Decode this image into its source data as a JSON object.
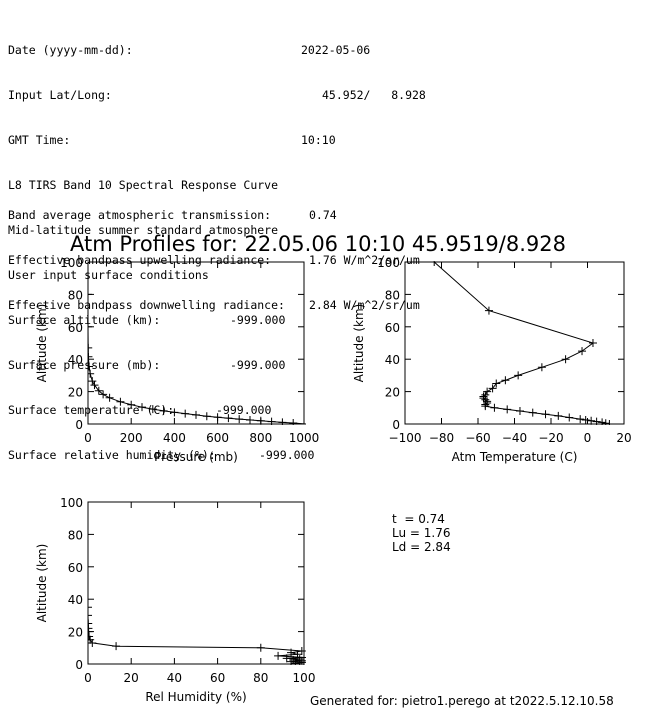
{
  "header": {
    "date_label": "Date (yyyy-mm-dd):",
    "date_value": "2022-05-06",
    "latlong_label": "Input Lat/Long:",
    "latlong_value": "45.952/   8.928",
    "gmt_label": "GMT Time:",
    "gmt_value": "10:10",
    "line_curve": "L8 TIRS Band 10 Spectral Response Curve",
    "line_atmos": "Mid-latitude summer standard atmosphere",
    "line_user": "User input surface conditions",
    "alt_label": "Surface altitude (km):",
    "alt_value": "-999.000",
    "pres_label": "Surface pressure (mb):",
    "pres_value": "-999.000",
    "temp_label": "Surface temperature (C):",
    "temp_value": "-999.000",
    "hum_label": "Surface relative humidity (%):",
    "hum_value": "-999.000"
  },
  "results": {
    "trans_label": "Band average atmospheric transmission:",
    "trans_value": "0.74",
    "up_label": "Effective bandpass upwelling radiance:",
    "up_value": "1.76 W/m^2/sr/um",
    "down_label": "Effective bandpass downwelling radiance:",
    "down_value": "2.84 W/m^2/sr/um"
  },
  "title": "Atm Profiles for: 22.05.06 10:10 45.9519/8.928",
  "summary": {
    "t": "t  = 0.74",
    "lu": "Lu = 1.76",
    "ld": "Ld = 2.84"
  },
  "footer": "Generated for: pietro1.perego at t2022.5.12.10.58",
  "chart_data": [
    {
      "type": "line",
      "name": "pressure-profile",
      "xlabel": "Pressure (mb)",
      "ylabel": "Altitude (km)",
      "xlim": [
        0,
        1000
      ],
      "ylim": [
        0,
        100
      ],
      "xticks": [
        0,
        200,
        400,
        600,
        800,
        1000
      ],
      "yticks": [
        0,
        20,
        40,
        60,
        80,
        100
      ],
      "marker": "plus",
      "points": [
        [
          1013,
          0
        ],
        [
          950,
          0.6
        ],
        [
          900,
          1
        ],
        [
          850,
          1.5
        ],
        [
          800,
          2
        ],
        [
          750,
          2.5
        ],
        [
          700,
          3
        ],
        [
          650,
          3.6
        ],
        [
          600,
          4.2
        ],
        [
          550,
          4.8
        ],
        [
          500,
          5.6
        ],
        [
          450,
          6.4
        ],
        [
          400,
          7.2
        ],
        [
          350,
          8.1
        ],
        [
          300,
          9.2
        ],
        [
          250,
          10.4
        ],
        [
          200,
          11.9
        ],
        [
          150,
          13.7
        ],
        [
          100,
          16.2
        ],
        [
          70,
          18.3
        ],
        [
          50,
          20.5
        ],
        [
          30,
          24
        ],
        [
          20,
          26.5
        ],
        [
          10,
          31
        ],
        [
          5,
          35.5
        ],
        [
          2,
          41.5
        ],
        [
          1,
          47
        ],
        [
          0.1,
          60
        ],
        [
          0,
          80
        ]
      ]
    },
    {
      "type": "line",
      "name": "temperature-profile",
      "xlabel": "Atm Temperature (C)",
      "ylabel": "Altitude (km)",
      "xlim": [
        -100,
        20
      ],
      "ylim": [
        0,
        100
      ],
      "xticks": [
        -100,
        -80,
        -60,
        -40,
        -20,
        0,
        20
      ],
      "yticks": [
        0,
        20,
        40,
        60,
        80,
        100
      ],
      "marker": "plus",
      "points": [
        [
          12,
          0
        ],
        [
          10,
          0.5
        ],
        [
          8,
          1
        ],
        [
          5,
          1.5
        ],
        [
          2,
          2
        ],
        [
          -1,
          2.5
        ],
        [
          -4,
          3
        ],
        [
          -10,
          4
        ],
        [
          -16,
          5
        ],
        [
          -23,
          6
        ],
        [
          -30,
          7
        ],
        [
          -37,
          8
        ],
        [
          -44,
          9
        ],
        [
          -51,
          10
        ],
        [
          -56,
          11
        ],
        [
          -56,
          12
        ],
        [
          -55,
          13
        ],
        [
          -55,
          14
        ],
        [
          -56,
          15
        ],
        [
          -57,
          16
        ],
        [
          -57,
          17
        ],
        [
          -56,
          18
        ],
        [
          -55,
          20
        ],
        [
          -52,
          22
        ],
        [
          -50,
          25
        ],
        [
          -45,
          27
        ],
        [
          -38,
          30
        ],
        [
          -25,
          35
        ],
        [
          -12,
          40
        ],
        [
          -3,
          45
        ],
        [
          3,
          50
        ],
        [
          -54,
          70
        ],
        [
          -84,
          100
        ]
      ]
    },
    {
      "type": "line",
      "name": "humidity-profile",
      "xlabel": "Rel Humidity (%)",
      "ylabel": "Altitude (km)",
      "xlim": [
        0,
        100
      ],
      "ylim": [
        0,
        100
      ],
      "xticks": [
        0,
        20,
        40,
        60,
        80,
        100
      ],
      "yticks": [
        0,
        20,
        40,
        60,
        80,
        100
      ],
      "marker": "plus",
      "points": [
        [
          98,
          0
        ],
        [
          96,
          0.5
        ],
        [
          100,
          1
        ],
        [
          94,
          1.5
        ],
        [
          99,
          2
        ],
        [
          95,
          2.5
        ],
        [
          98,
          3
        ],
        [
          92,
          3.5
        ],
        [
          100,
          4
        ],
        [
          88,
          5
        ],
        [
          97,
          6
        ],
        [
          94,
          7
        ],
        [
          99,
          8
        ],
        [
          80,
          10
        ],
        [
          13,
          11
        ],
        [
          2,
          13
        ],
        [
          1,
          15
        ],
        [
          0.5,
          17
        ],
        [
          0.3,
          20
        ],
        [
          0.2,
          22
        ],
        [
          0.1,
          25
        ],
        [
          0,
          30
        ],
        [
          0,
          35
        ]
      ]
    }
  ]
}
